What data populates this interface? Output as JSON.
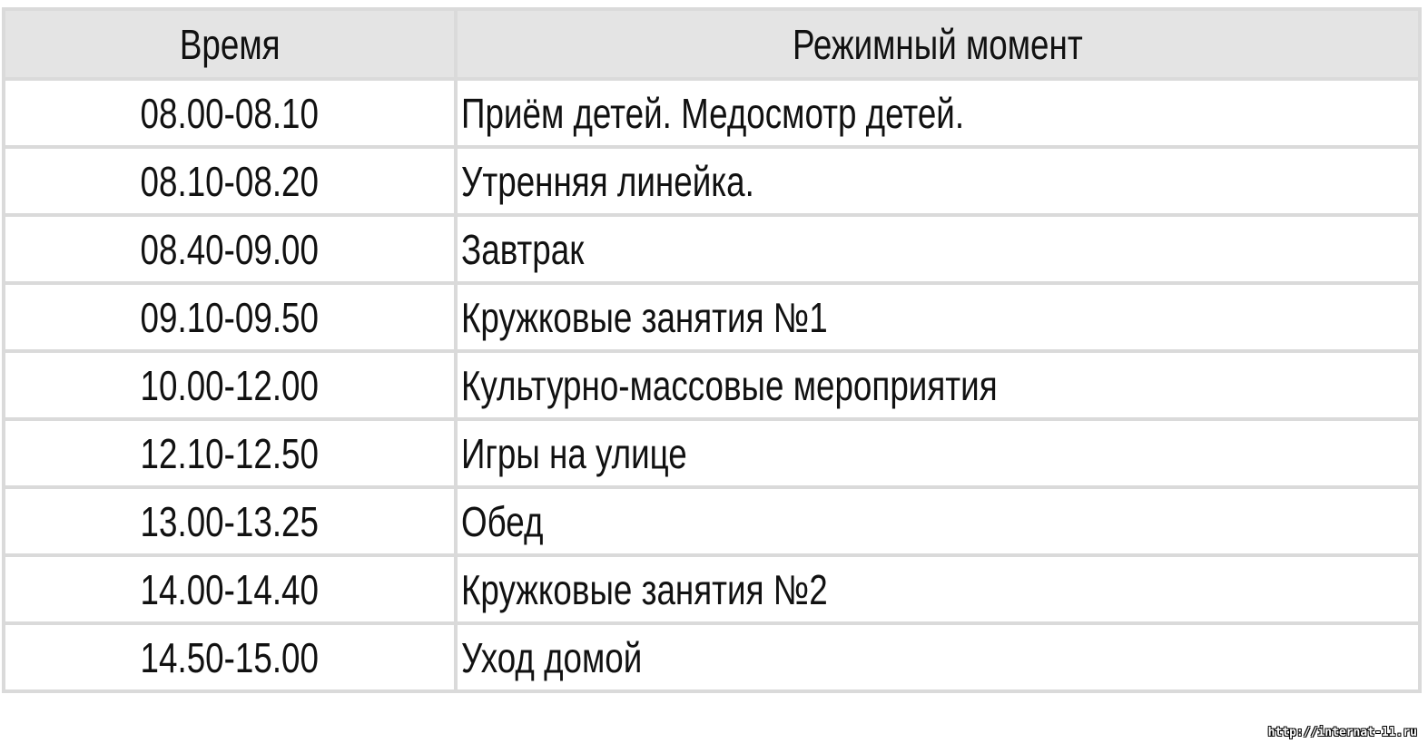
{
  "table": {
    "headers": [
      "Время",
      "Режимный момент"
    ],
    "rows": [
      {
        "time": "08.00-08.10",
        "activity": "Приём детей. Медосмотр детей."
      },
      {
        "time": "08.10-08.20",
        "activity": "Утренняя линейка."
      },
      {
        "time": "08.40-09.00",
        "activity": "Завтрак"
      },
      {
        "time": "09.10-09.50",
        "activity": "Кружковые занятия №1"
      },
      {
        "time": "10.00-12.00",
        "activity": "Культурно-массовые мероприятия"
      },
      {
        "time": "12.10-12.50",
        "activity": "Игры на улице"
      },
      {
        "time": "13.00-13.25",
        "activity": "Обед"
      },
      {
        "time": "14.00-14.40",
        "activity": "Кружковые занятия №2"
      },
      {
        "time": "14.50-15.00",
        "activity": "Уход домой"
      }
    ]
  },
  "watermark": "http://internat-11.ru"
}
